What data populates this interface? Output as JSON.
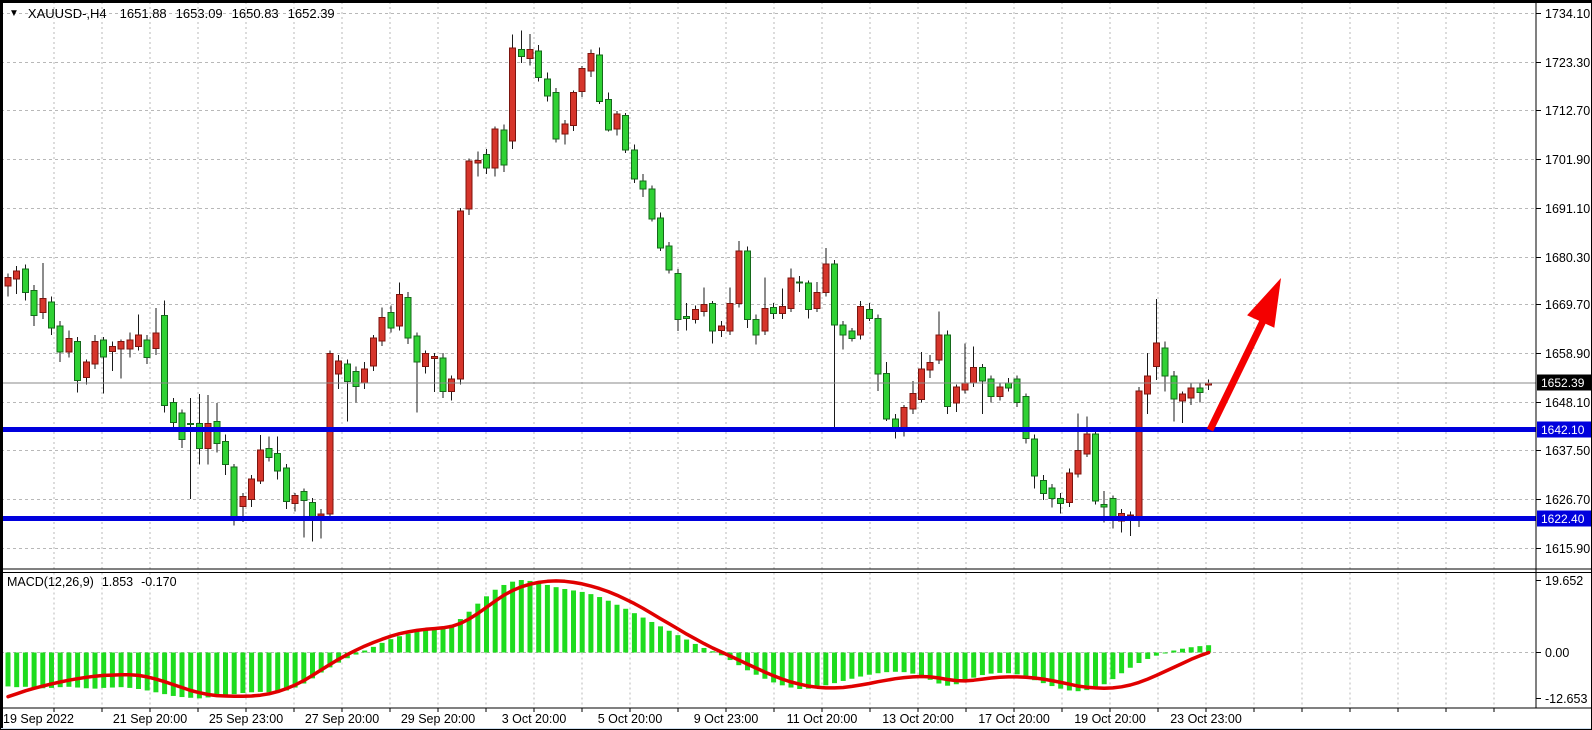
{
  "window": {
    "dropdown_icon": "▼",
    "symbol": "XAUUSD-,H4",
    "ohlc": {
      "open": "1651.88",
      "high": "1653.09",
      "low": "1650.83",
      "close": "1652.39"
    }
  },
  "colors": {
    "bull": "#d6352b",
    "bull_border": "#7c140e",
    "bear": "#2fd134",
    "bear_border": "#14691a",
    "wick": "#1a1a1a",
    "histogram": "#1edc1e",
    "signal": "#e00000",
    "level_line": "#0000dd",
    "arrow": "#f40000",
    "grid": "#b8b8b8",
    "border": "#000000",
    "current_price_line": "#8a8a8a",
    "tag_black_bg": "#000000",
    "tag_blue_bg": "#0000dd",
    "tag_text": "#ffffff"
  },
  "chart_data": {
    "type": "candlestick",
    "title": "XAUUSD-,H4 1651.88 1653.09 1650.83 1652.39",
    "timeframe": "H4",
    "price_axis": {
      "labels": [
        "1734.10",
        "1723.30",
        "1712.70",
        "1701.90",
        "1691.10",
        "1680.30",
        "1669.70",
        "1658.90",
        "1648.10",
        "1637.50",
        "1626.70",
        "1615.90"
      ],
      "min": 1615.9,
      "max": 1734.1
    },
    "current_price": {
      "label": "1652.39",
      "value": 1652.39
    },
    "hlines": [
      {
        "label": "1642.10",
        "value": 1642.1
      },
      {
        "label": "1622.40",
        "value": 1622.4
      }
    ],
    "x_axis": {
      "labels": [
        "19 Sep 2022",
        "21 Sep 20:00",
        "25 Sep 23:00",
        "27 Sep 20:00",
        "29 Sep 20:00",
        "3 Oct 20:00",
        "5 Oct 20:00",
        "9 Oct 23:00",
        "11 Oct 20:00",
        "13 Oct 20:00",
        "17 Oct 20:00",
        "19 Oct 20:00",
        "23 Oct 23:00"
      ]
    },
    "candles_ohlc": [
      [
        1673.8,
        1676.6,
        1671.5,
        1675.7
      ],
      [
        1675.3,
        1678.2,
        1672.0,
        1677.1
      ],
      [
        1677.5,
        1678.5,
        1670.6,
        1672.4
      ],
      [
        1672.8,
        1674.0,
        1665.0,
        1667.3
      ],
      [
        1667.9,
        1678.9,
        1666.5,
        1671.0
      ],
      [
        1670.2,
        1671.5,
        1663.0,
        1664.5
      ],
      [
        1664.9,
        1666.0,
        1657.0,
        1659.2
      ],
      [
        1659.2,
        1664.0,
        1658.0,
        1662.2
      ],
      [
        1661.5,
        1662.5,
        1650.2,
        1652.9
      ],
      [
        1653.6,
        1657.5,
        1652.0,
        1657.0
      ],
      [
        1656.5,
        1663.0,
        1655.5,
        1661.5
      ],
      [
        1661.9,
        1662.5,
        1650.0,
        1658.1
      ],
      [
        1659.3,
        1661.5,
        1655.0,
        1660.4
      ],
      [
        1659.9,
        1662.0,
        1653.4,
        1661.5
      ],
      [
        1659.9,
        1663.5,
        1658.0,
        1661.9
      ],
      [
        1660.4,
        1667.5,
        1659.5,
        1663.0
      ],
      [
        1661.9,
        1663.0,
        1656.5,
        1658.0
      ],
      [
        1660.0,
        1668.9,
        1658.5,
        1663.4
      ],
      [
        1667.3,
        1670.6,
        1645.8,
        1647.4
      ],
      [
        1648.1,
        1649.0,
        1642.0,
        1643.6
      ],
      [
        1645.7,
        1646.5,
        1638.0,
        1639.9
      ],
      [
        1643.4,
        1649.0,
        1626.7,
        1643.2
      ],
      [
        1643.4,
        1649.9,
        1634.4,
        1637.9
      ],
      [
        1637.9,
        1649.7,
        1634.4,
        1643.4
      ],
      [
        1643.9,
        1647.9,
        1637.0,
        1639.0
      ],
      [
        1639.4,
        1641.0,
        1632.0,
        1634.3
      ],
      [
        1633.8,
        1634.5,
        1620.9,
        1622.7
      ],
      [
        1625.1,
        1628.0,
        1621.6,
        1627.3
      ],
      [
        1626.6,
        1632.0,
        1625.0,
        1631.1
      ],
      [
        1630.7,
        1640.9,
        1630.0,
        1637.5
      ],
      [
        1637.9,
        1640.5,
        1635.0,
        1635.9
      ],
      [
        1636.8,
        1640.5,
        1631.0,
        1632.9
      ],
      [
        1633.6,
        1634.5,
        1624.5,
        1626.2
      ],
      [
        1625.7,
        1628.0,
        1624.0,
        1627.5
      ],
      [
        1628.4,
        1629.0,
        1618.2,
        1626.4
      ],
      [
        1626.0,
        1627.0,
        1617.3,
        1622.5
      ],
      [
        1623.0,
        1624.5,
        1618.0,
        1623.4
      ],
      [
        1623.4,
        1659.5,
        1622.0,
        1658.9
      ],
      [
        1654.3,
        1658.5,
        1651.0,
        1657.2
      ],
      [
        1656.5,
        1657.5,
        1643.9,
        1652.7
      ],
      [
        1654.9,
        1656.0,
        1648.0,
        1651.6
      ],
      [
        1652.3,
        1657.0,
        1651.0,
        1655.4
      ],
      [
        1656.1,
        1663.0,
        1655.0,
        1662.3
      ],
      [
        1661.6,
        1669.0,
        1660.5,
        1666.8
      ],
      [
        1667.9,
        1669.5,
        1663.5,
        1664.5
      ],
      [
        1664.9,
        1674.6,
        1664.0,
        1671.9
      ],
      [
        1671.2,
        1672.5,
        1661.0,
        1662.3
      ],
      [
        1662.7,
        1663.5,
        1645.8,
        1657.0
      ],
      [
        1656.0,
        1659.5,
        1654.5,
        1658.9
      ],
      [
        1657.8,
        1659.0,
        1650.4,
        1658.2
      ],
      [
        1657.9,
        1659.0,
        1649.0,
        1650.5
      ],
      [
        1650.5,
        1654.0,
        1648.5,
        1653.2
      ],
      [
        1653.2,
        1691.0,
        1652.0,
        1690.4
      ],
      [
        1690.8,
        1702.0,
        1689.5,
        1701.4
      ],
      [
        1701.0,
        1703.5,
        1698.0,
        1701.5
      ],
      [
        1702.8,
        1704.0,
        1698.5,
        1699.9
      ],
      [
        1699.9,
        1709.0,
        1698.0,
        1708.5
      ],
      [
        1708.3,
        1709.5,
        1699.0,
        1700.5
      ],
      [
        1705.8,
        1729.3,
        1704.0,
        1726.4
      ],
      [
        1726.0,
        1730.2,
        1723.0,
        1724.5
      ],
      [
        1724.0,
        1729.5,
        1722.5,
        1726.0
      ],
      [
        1725.7,
        1727.0,
        1719.0,
        1719.8
      ],
      [
        1719.5,
        1721.0,
        1714.5,
        1715.8
      ],
      [
        1716.5,
        1717.5,
        1705.5,
        1706.3
      ],
      [
        1707.4,
        1710.5,
        1705.0,
        1709.6
      ],
      [
        1709.2,
        1717.0,
        1708.0,
        1716.5
      ],
      [
        1716.8,
        1722.4,
        1715.5,
        1721.8
      ],
      [
        1721.3,
        1726.0,
        1720.0,
        1725.2
      ],
      [
        1724.8,
        1726.5,
        1714.0,
        1714.5
      ],
      [
        1715.0,
        1716.5,
        1707.9,
        1708.3
      ],
      [
        1708.5,
        1712.5,
        1707.0,
        1711.8
      ],
      [
        1711.4,
        1712.0,
        1703.2,
        1703.8
      ],
      [
        1703.8,
        1705.0,
        1696.5,
        1697.4
      ],
      [
        1697.0,
        1698.5,
        1693.5,
        1695.2
      ],
      [
        1695.2,
        1696.0,
        1688.0,
        1688.6
      ],
      [
        1688.8,
        1690.0,
        1681.5,
        1682.2
      ],
      [
        1682.6,
        1683.5,
        1676.5,
        1677.3
      ],
      [
        1676.6,
        1677.5,
        1663.8,
        1666.4
      ],
      [
        1667.0,
        1670.0,
        1664.0,
        1666.6
      ],
      [
        1666.4,
        1669.5,
        1665.5,
        1668.6
      ],
      [
        1668.2,
        1673.4,
        1667.0,
        1669.7
      ],
      [
        1669.9,
        1670.5,
        1661.1,
        1663.8
      ],
      [
        1664.0,
        1666.0,
        1662.5,
        1665.0
      ],
      [
        1663.8,
        1673.4,
        1663.0,
        1669.9
      ],
      [
        1669.9,
        1683.7,
        1669.0,
        1681.5
      ],
      [
        1681.5,
        1682.5,
        1664.5,
        1666.4
      ],
      [
        1666.4,
        1667.5,
        1660.9,
        1663.0
      ],
      [
        1663.8,
        1675.7,
        1663.0,
        1668.8
      ],
      [
        1669.0,
        1670.0,
        1666.5,
        1667.7
      ],
      [
        1667.7,
        1673.2,
        1666.5,
        1669.3
      ],
      [
        1668.8,
        1677.7,
        1668.0,
        1675.5
      ],
      [
        1674.7,
        1676.0,
        1672.5,
        1674.5
      ],
      [
        1674.5,
        1675.0,
        1666.6,
        1668.6
      ],
      [
        1668.8,
        1674.7,
        1668.0,
        1672.4
      ],
      [
        1672.4,
        1682.2,
        1671.5,
        1678.6
      ],
      [
        1678.6,
        1679.5,
        1642.5,
        1665.2
      ],
      [
        1665.2,
        1666.0,
        1659.7,
        1663.0
      ],
      [
        1663.8,
        1664.5,
        1661.5,
        1662.2
      ],
      [
        1663.0,
        1670.5,
        1662.0,
        1669.3
      ],
      [
        1668.6,
        1670.0,
        1666.0,
        1666.6
      ],
      [
        1666.6,
        1667.5,
        1650.6,
        1654.3
      ],
      [
        1654.5,
        1657.0,
        1644.0,
        1644.4
      ],
      [
        1644.4,
        1645.5,
        1640.1,
        1642.1
      ],
      [
        1642.1,
        1647.5,
        1640.5,
        1646.9
      ],
      [
        1646.6,
        1652.8,
        1645.5,
        1650.0
      ],
      [
        1648.7,
        1659.2,
        1648.0,
        1655.4
      ],
      [
        1655.2,
        1658.5,
        1653.5,
        1656.9
      ],
      [
        1657.4,
        1668.2,
        1656.5,
        1663.0
      ],
      [
        1663.0,
        1664.0,
        1645.5,
        1647.2
      ],
      [
        1647.9,
        1652.0,
        1646.0,
        1651.5
      ],
      [
        1650.8,
        1661.1,
        1650.0,
        1652.4
      ],
      [
        1652.4,
        1660.4,
        1651.5,
        1655.8
      ],
      [
        1655.8,
        1656.5,
        1645.5,
        1652.8
      ],
      [
        1653.2,
        1654.0,
        1648.0,
        1649.4
      ],
      [
        1649.4,
        1652.5,
        1648.5,
        1651.5
      ],
      [
        1652.4,
        1653.5,
        1650.5,
        1651.3
      ],
      [
        1653.2,
        1654.0,
        1647.0,
        1648.1
      ],
      [
        1649.4,
        1650.0,
        1639.0,
        1640.1
      ],
      [
        1640.0,
        1641.0,
        1629.1,
        1631.8
      ],
      [
        1630.8,
        1632.0,
        1626.5,
        1627.9
      ],
      [
        1629.2,
        1630.0,
        1624.8,
        1626.8
      ],
      [
        1626.8,
        1628.0,
        1623.5,
        1625.7
      ],
      [
        1625.9,
        1633.5,
        1625.0,
        1632.5
      ],
      [
        1632.3,
        1645.6,
        1631.5,
        1637.4
      ],
      [
        1636.7,
        1645.0,
        1636.0,
        1641.1
      ],
      [
        1641.1,
        1642.0,
        1625.5,
        1626.3
      ],
      [
        1625.5,
        1628.5,
        1621.5,
        1625.0
      ],
      [
        1626.8,
        1627.5,
        1620.2,
        1622.6
      ],
      [
        1621.9,
        1624.5,
        1619.3,
        1623.5
      ],
      [
        1623.0,
        1624.0,
        1618.6,
        1623.2
      ],
      [
        1622.6,
        1651.5,
        1620.5,
        1650.6
      ],
      [
        1649.9,
        1659.0,
        1645.5,
        1653.9
      ],
      [
        1656.0,
        1670.9,
        1653.0,
        1661.2
      ],
      [
        1660.1,
        1661.5,
        1650.5,
        1653.9
      ],
      [
        1653.9,
        1655.0,
        1643.9,
        1648.8
      ],
      [
        1648.4,
        1650.5,
        1643.5,
        1649.9
      ],
      [
        1649.0,
        1652.5,
        1647.5,
        1651.3
      ],
      [
        1651.3,
        1652.5,
        1648.0,
        1650.2
      ],
      [
        1651.88,
        1653.09,
        1650.83,
        1652.39
      ]
    ],
    "macd": {
      "indicator_label": "MACD(12,26,9)",
      "main_value": "1.853",
      "signal_value": "-0.170",
      "axis_labels": [
        "19.652",
        "0.00",
        "-12.653"
      ],
      "histogram": [
        -9.4,
        -9.6,
        -9.5,
        -9.7,
        -9.9,
        -9.8,
        -9.6,
        -9.5,
        -9.7,
        -9.9,
        -10.0,
        -9.8,
        -9.7,
        -9.6,
        -9.8,
        -10.1,
        -10.5,
        -11.0,
        -11.5,
        -12.0,
        -12.3,
        -12.5,
        -12.653,
        -12.4,
        -12.1,
        -11.8,
        -11.5,
        -11.2,
        -11.0,
        -10.9,
        -11.0,
        -11.1,
        -10.5,
        -9.7,
        -8.6,
        -7.2,
        -5.6,
        -4.2,
        -2.9,
        -1.7,
        -0.7,
        0.4,
        1.4,
        2.5,
        3.5,
        4.3,
        5.0,
        5.6,
        6.1,
        6.4,
        6.6,
        7.4,
        9.0,
        11.0,
        13.2,
        15.2,
        17.0,
        18.3,
        19.2,
        19.652,
        19.4,
        18.9,
        18.3,
        17.7,
        17.2,
        16.8,
        16.4,
        15.8,
        15.0,
        14.0,
        12.9,
        11.8,
        10.6,
        9.4,
        8.2,
        7.0,
        5.8,
        4.6,
        3.4,
        2.2,
        1.1,
        0.2,
        -0.9,
        -2.2,
        -3.6,
        -5.0,
        -6.2,
        -7.3,
        -8.3,
        -9.1,
        -9.7,
        -10.1,
        -10.0,
        -9.6,
        -9.1,
        -8.5,
        -7.9,
        -7.3,
        -6.7,
        -6.2,
        -5.8,
        -5.5,
        -5.4,
        -5.5,
        -5.9,
        -6.6,
        -7.6,
        -8.6,
        -9.2,
        -8.8,
        -7.9,
        -7.0,
        -6.3,
        -5.9,
        -5.7,
        -5.8,
        -6.1,
        -7.0,
        -7.7,
        -8.5,
        -9.3,
        -10.0,
        -10.5,
        -10.7,
        -10.4,
        -9.8,
        -8.8,
        -7.4,
        -5.8,
        -4.3,
        -3.0,
        -1.9,
        -1.0,
        -0.3,
        0.4,
        0.9,
        1.3,
        1.6,
        1.853
      ],
      "signal": [
        -12.2,
        -11.4,
        -10.6,
        -9.9,
        -9.3,
        -8.7,
        -8.2,
        -7.7,
        -7.3,
        -6.9,
        -6.6,
        -6.4,
        -6.3,
        -6.2,
        -6.2,
        -6.4,
        -6.8,
        -7.4,
        -8.1,
        -8.9,
        -9.7,
        -10.5,
        -11.1,
        -11.6,
        -11.9,
        -12.0,
        -12.1,
        -12.1,
        -12.0,
        -11.8,
        -11.4,
        -10.8,
        -10.0,
        -9.0,
        -7.8,
        -6.4,
        -4.9,
        -3.4,
        -2.0,
        -0.7,
        0.5,
        1.6,
        2.6,
        3.5,
        4.3,
        5.0,
        5.5,
        5.9,
        6.2,
        6.4,
        6.6,
        7.0,
        7.8,
        9.0,
        10.5,
        12.2,
        13.9,
        15.5,
        16.8,
        17.8,
        18.5,
        19.0,
        19.3,
        19.4,
        19.3,
        19.0,
        18.6,
        18.0,
        17.3,
        16.5,
        15.5,
        14.4,
        13.2,
        11.9,
        10.5,
        9.1,
        7.7,
        6.3,
        4.9,
        3.6,
        2.3,
        1.1,
        0.0,
        -1.1,
        -2.2,
        -3.3,
        -4.4,
        -5.5,
        -6.5,
        -7.4,
        -8.2,
        -8.8,
        -9.3,
        -9.6,
        -9.8,
        -9.8,
        -9.7,
        -9.4,
        -9.0,
        -8.6,
        -8.1,
        -7.7,
        -7.3,
        -7.0,
        -6.8,
        -6.7,
        -6.8,
        -7.1,
        -7.5,
        -7.8,
        -7.9,
        -7.7,
        -7.4,
        -7.1,
        -6.9,
        -6.8,
        -6.8,
        -6.9,
        -7.1,
        -7.4,
        -7.8,
        -8.3,
        -8.8,
        -9.3,
        -9.6,
        -9.8,
        -9.9,
        -9.8,
        -9.5,
        -9.0,
        -8.3,
        -7.4,
        -6.4,
        -5.3,
        -4.2,
        -3.1,
        -2.0,
        -1.0,
        -0.17
      ]
    },
    "annotations": [
      {
        "type": "arrow-up-right",
        "color": "#f40000"
      }
    ]
  }
}
